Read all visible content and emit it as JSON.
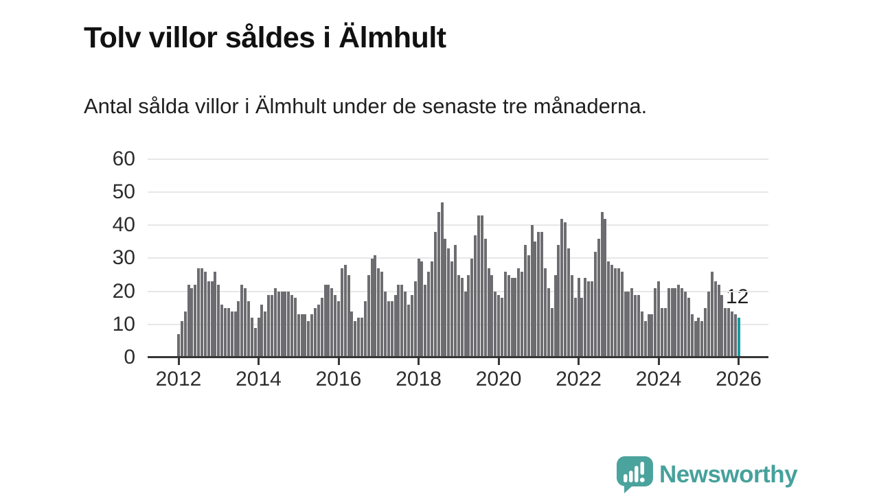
{
  "header": {
    "title": "Tolv villor såldes i Älmhult",
    "subtitle": "Antal sålda villor i Älmhult under de senaste tre månaderna."
  },
  "annotation": {
    "last_value_label": "12"
  },
  "footer": {
    "brand": "Newsworthy",
    "logo_icon": "bar-chart-speech-bubble-icon"
  },
  "colors": {
    "bar": "#6d6d71",
    "highlight": "#139fa2",
    "grid": "#e7e7e7",
    "axis": "#363636",
    "label": "#2d2d2d",
    "brand": "#46a19b"
  },
  "chart_data": {
    "type": "bar",
    "title": "Tolv villor såldes i Älmhult",
    "subtitle": "Antal sålda villor i Älmhult under de senaste tre månaderna.",
    "frequency": "monthly",
    "x_start": "2012-01",
    "x_end": "2026-01",
    "x_tick_labels": [
      "2012",
      "2014",
      "2016",
      "2018",
      "2020",
      "2022",
      "2024",
      "2026"
    ],
    "x_tick_month_interval": 24,
    "y_ticks": [
      0,
      10,
      20,
      30,
      40,
      50,
      60
    ],
    "ylim": [
      0,
      60
    ],
    "grid": true,
    "legend": false,
    "highlight_last": true,
    "last_value": 12,
    "values": [
      7,
      11,
      14,
      22,
      21,
      22,
      27,
      27,
      26,
      23,
      23,
      26,
      22,
      16,
      15,
      15,
      14,
      14,
      17,
      22,
      21,
      17,
      12,
      9,
      12,
      16,
      14,
      19,
      19,
      21,
      20,
      20,
      20,
      20,
      19,
      18,
      13,
      13,
      13,
      11,
      13,
      15,
      16,
      18,
      22,
      22,
      21,
      19,
      17,
      27,
      28,
      25,
      14,
      11,
      12,
      12,
      17,
      25,
      30,
      31,
      27,
      26,
      20,
      17,
      17,
      19,
      22,
      22,
      20,
      16,
      19,
      23,
      30,
      29,
      22,
      26,
      29,
      38,
      44,
      47,
      36,
      33,
      29,
      34,
      25,
      24,
      20,
      25,
      30,
      37,
      43,
      43,
      36,
      27,
      25,
      20,
      19,
      18,
      26,
      25,
      24,
      24,
      27,
      26,
      34,
      31,
      40,
      35,
      38,
      38,
      27,
      21,
      15,
      25,
      34,
      42,
      41,
      33,
      25,
      18,
      24,
      18,
      24,
      23,
      23,
      32,
      36,
      44,
      42,
      29,
      28,
      27,
      27,
      26,
      20,
      20,
      21,
      19,
      19,
      14,
      11,
      13,
      13,
      21,
      23,
      15,
      15,
      21,
      21,
      21,
      22,
      21,
      20,
      18,
      13,
      11,
      12,
      11,
      15,
      20,
      26,
      23,
      22,
      19,
      15,
      15,
      14,
      13,
      12
    ]
  }
}
